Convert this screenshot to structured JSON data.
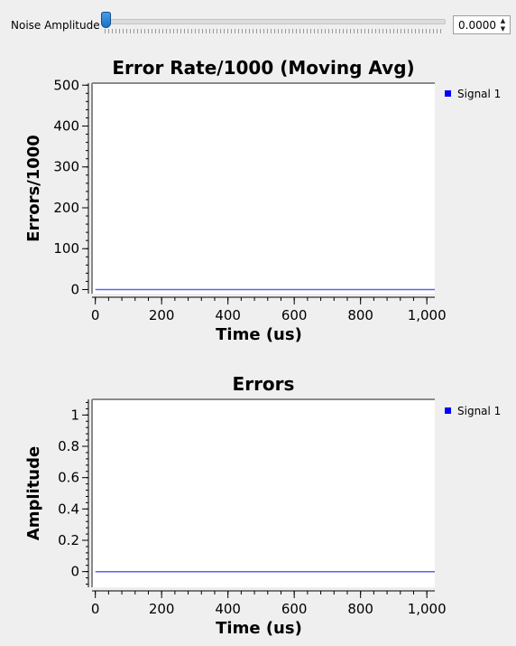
{
  "controls": {
    "noise_label": "Noise Amplitude",
    "noise_value": "0.0000",
    "noise_slider_fraction": 0.0,
    "accent_color": "#1a72c7"
  },
  "chart_data": [
    {
      "type": "line",
      "title": "Error Rate/1000 (Moving Avg)",
      "xlabel": "Time (us)",
      "ylabel": "Errors/1000",
      "xlim": [
        -10,
        1024
      ],
      "ylim": [
        -10,
        505
      ],
      "x_ticks": [
        0,
        200,
        400,
        600,
        800,
        1000
      ],
      "x_tick_labels": [
        "0",
        "200",
        "400",
        "600",
        "800",
        "1,000"
      ],
      "y_ticks": [
        0,
        100,
        200,
        300,
        400,
        500
      ],
      "y_tick_labels": [
        "0",
        "100",
        "200",
        "300",
        "400",
        "500"
      ],
      "series": [
        {
          "name": "Signal 1",
          "color": "#0000ff",
          "x": [
            0,
            1024
          ],
          "y": [
            0,
            0
          ]
        }
      ],
      "legend": "right",
      "grid": false
    },
    {
      "type": "line",
      "title": "Errors",
      "xlabel": "Time (us)",
      "ylabel": "Amplitude",
      "xlim": [
        -10,
        1024
      ],
      "ylim": [
        -0.1,
        1.1
      ],
      "x_ticks": [
        0,
        200,
        400,
        600,
        800,
        1000
      ],
      "x_tick_labels": [
        "0",
        "200",
        "400",
        "600",
        "800",
        "1,000"
      ],
      "y_ticks": [
        0,
        0.2,
        0.4,
        0.6,
        0.8,
        1
      ],
      "y_tick_labels": [
        "0",
        "0.2",
        "0.4",
        "0.6",
        "0.8",
        "1"
      ],
      "series": [
        {
          "name": "Signal 1",
          "color": "#0000ff",
          "x": [
            0,
            1024
          ],
          "y": [
            0,
            0
          ]
        }
      ],
      "legend": "right",
      "grid": false
    }
  ]
}
